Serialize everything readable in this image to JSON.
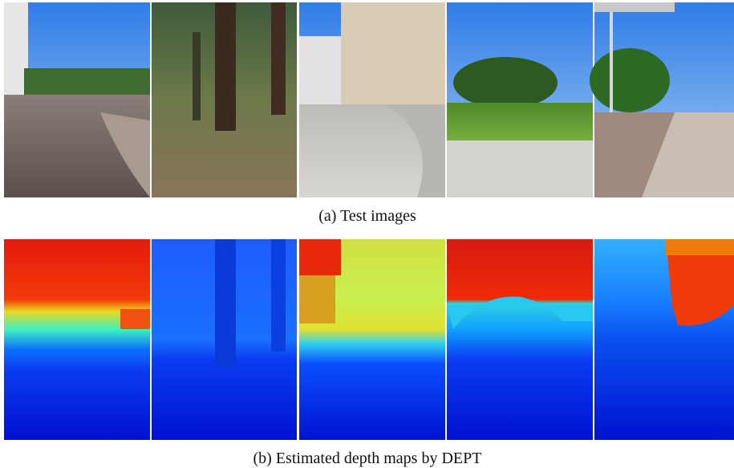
{
  "figure": {
    "panels": [
      {
        "caption": "(a) Test images"
      },
      {
        "caption": "(b) Estimated depth maps by DEPT"
      }
    ]
  }
}
